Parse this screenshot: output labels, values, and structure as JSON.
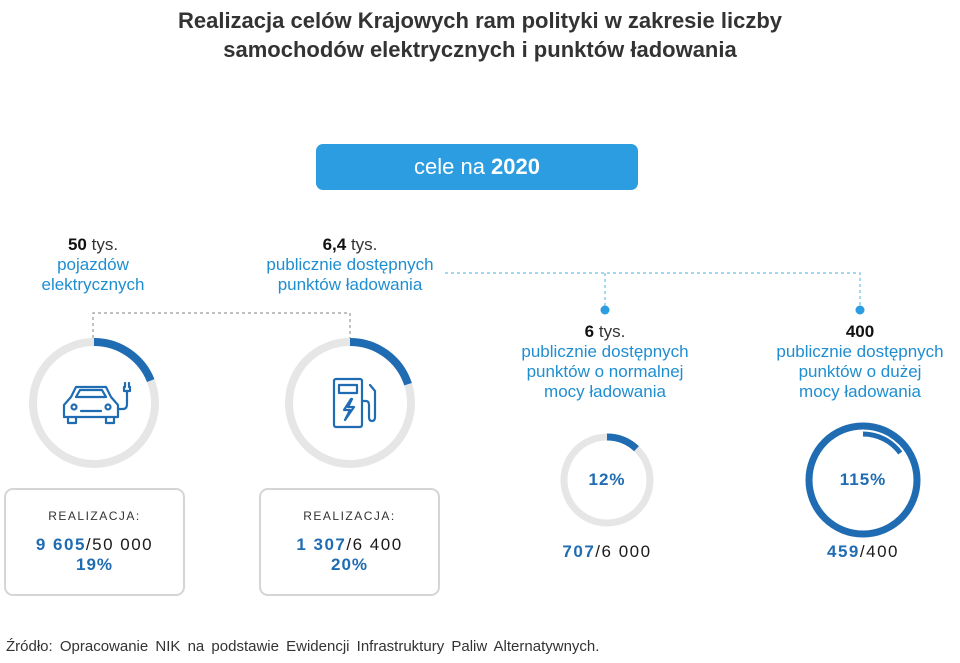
{
  "title": {
    "line1": "Realizacja celów Krajowych ram polityki w zakresie liczby",
    "line2": "samochodów elektrycznych i punktów ładowania"
  },
  "goal": {
    "prefix": "cele na",
    "year": "2020"
  },
  "targets": [
    {
      "num": "50",
      "unit": "tys.",
      "desc1": "pojazdów",
      "desc2": "elektrycznych",
      "desc3": "",
      "icon": "car-icon"
    },
    {
      "num": "6,4",
      "unit": "tys.",
      "desc1": "publicznie dostępnych",
      "desc2": "punktów ładowania",
      "desc3": "",
      "icon": "charging-station-icon"
    },
    {
      "num": "6",
      "unit": "tys.",
      "desc1": "publicznie dostępnych",
      "desc2": "punktów o normalnej",
      "desc3": "mocy ładowania"
    },
    {
      "num": "400",
      "unit": "",
      "desc1": "publicznie dostępnych",
      "desc2": "punktów o dużej",
      "desc3": "mocy ładowania"
    }
  ],
  "progress": [
    {
      "label": "REALIZACJA:",
      "actual": "9 605",
      "target": "/50 000",
      "pct": "19%",
      "fraction": 0.19
    },
    {
      "label": "REALIZACJA:",
      "actual": "1 307",
      "target": "/6 400",
      "pct": "20%",
      "fraction": 0.2
    },
    {
      "actual": "707",
      "target": "/6 000",
      "pct": "12%",
      "fraction": 0.12
    },
    {
      "actual": "459",
      "target": "/400",
      "pct": "115%",
      "fraction": 1.15
    }
  ],
  "source": "Źródło: Opracowanie NIK na podstawie Ewidencji Infrastruktury Paliw Alternatywnych.",
  "colors": {
    "accent": "#2b9de0",
    "ring_fill": "#1f6cb3",
    "ring_track": "#e6e6e6",
    "desc_text": "#1f8ed1"
  }
}
